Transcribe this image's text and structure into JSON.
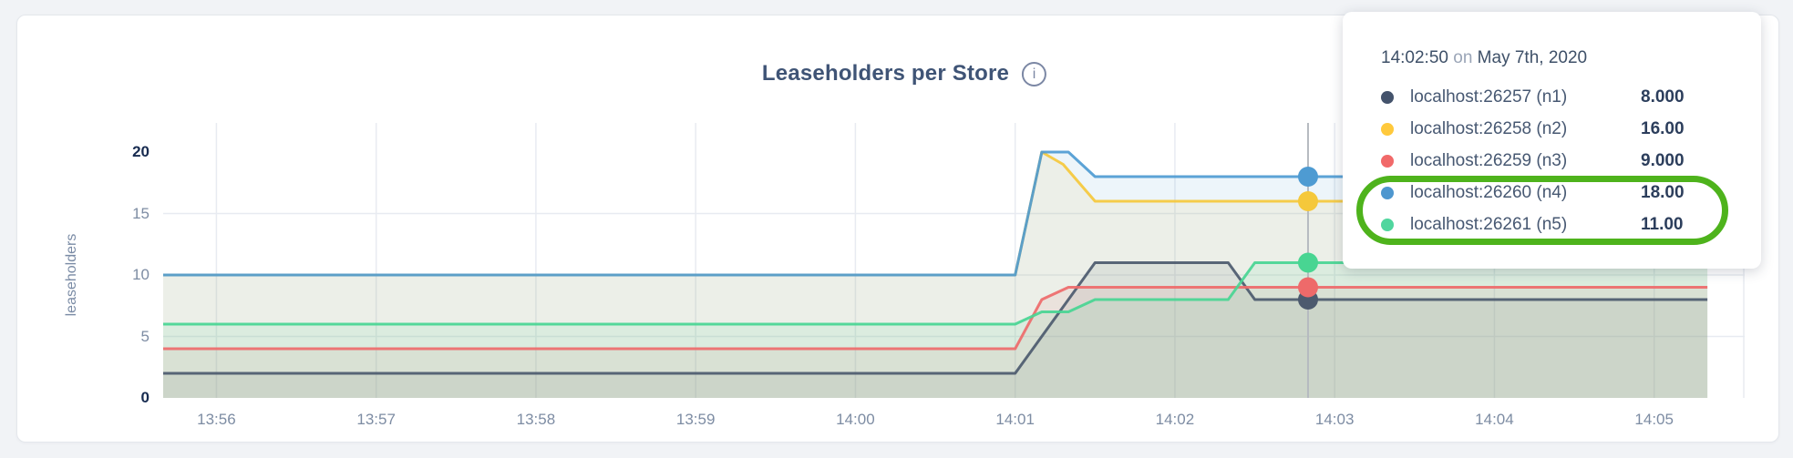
{
  "chart": {
    "title": "Leaseholders per Store",
    "info_icon": "i",
    "y_axis": {
      "label": "leaseholders"
    }
  },
  "chart_data": {
    "type": "line",
    "title": "Leaseholders per Store",
    "ylabel": "leaseholders",
    "ylim": [
      0,
      20
    ],
    "y_ticks": [
      0,
      5,
      10,
      15,
      20
    ],
    "y_gridlines": [
      5,
      10,
      15
    ],
    "x_ticks": [
      "13:56",
      "13:57",
      "13:58",
      "13:59",
      "14:00",
      "14:01",
      "14:02",
      "14:03",
      "14:04",
      "14:05"
    ],
    "x_domain": [
      "13:55:40",
      "14:05:34"
    ],
    "grid_color": "#e8ebf1",
    "crosshair_color": "#b6bac0",
    "fill_opacity": 0.1,
    "series": [
      {
        "name": "localhost:26257 (n1)",
        "color": "#4c5a6e",
        "points": [
          [
            "13:55:40",
            2
          ],
          [
            "14:01:00",
            2
          ],
          [
            "14:01:20",
            8
          ],
          [
            "14:01:30",
            11
          ],
          [
            "14:02:20",
            11
          ],
          [
            "14:02:30",
            8
          ],
          [
            "14:05:20",
            8
          ]
        ]
      },
      {
        "name": "localhost:26258 (n2)",
        "color": "#f5c83b",
        "points": [
          [
            "13:55:40",
            10
          ],
          [
            "14:01:00",
            10
          ],
          [
            "14:01:10",
            20
          ],
          [
            "14:01:18",
            19
          ],
          [
            "14:01:30",
            16
          ],
          [
            "14:05:20",
            16
          ]
        ]
      },
      {
        "name": "localhost:26259 (n3)",
        "color": "#ee6a6a",
        "points": [
          [
            "13:55:40",
            4
          ],
          [
            "14:01:00",
            4
          ],
          [
            "14:01:10",
            8
          ],
          [
            "14:01:20",
            9
          ],
          [
            "14:05:20",
            9
          ]
        ]
      },
      {
        "name": "localhost:26260 (n4)",
        "color": "#4e9bd2",
        "points": [
          [
            "13:55:40",
            10
          ],
          [
            "14:01:00",
            10
          ],
          [
            "14:01:10",
            20
          ],
          [
            "14:01:20",
            20
          ],
          [
            "14:01:30",
            18
          ],
          [
            "14:05:20",
            18
          ]
        ]
      },
      {
        "name": "localhost:26261 (n5)",
        "color": "#48d592",
        "points": [
          [
            "13:55:40",
            6
          ],
          [
            "14:01:00",
            6
          ],
          [
            "14:01:10",
            7
          ],
          [
            "14:01:20",
            7
          ],
          [
            "14:01:30",
            8
          ],
          [
            "14:02:20",
            8
          ],
          [
            "14:02:30",
            11
          ],
          [
            "14:05:20",
            11
          ]
        ]
      }
    ],
    "hover": {
      "time": "14:02:50",
      "values": [
        8,
        16,
        9,
        18,
        11
      ]
    }
  },
  "tooltip": {
    "time": "14:02:50",
    "connector": "on",
    "date": "May 7th, 2020",
    "rows": [
      {
        "label": "localhost:26257 (n1)",
        "value": "8.000",
        "color": "#44536c"
      },
      {
        "label": "localhost:26258 (n2)",
        "value": "16.00",
        "color": "#ffc93c"
      },
      {
        "label": "localhost:26259 (n3)",
        "value": "9.000",
        "color": "#f16969"
      },
      {
        "label": "localhost:26260 (n4)",
        "value": "18.00",
        "color": "#4e97cf"
      },
      {
        "label": "localhost:26261 (n5)",
        "value": "11.00",
        "color": "#50d69e"
      }
    ],
    "highlight_color": "#4eb31c"
  }
}
